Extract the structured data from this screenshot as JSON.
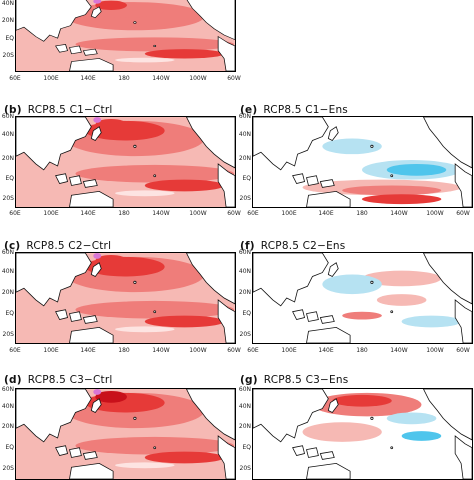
{
  "colors": {
    "warm_light": "#f6b9b4",
    "warm_mid": "#ef7d7a",
    "warm_strong": "#e63a38",
    "warm_deep": "#c8101a",
    "cool_light": "#b6e2f2",
    "cool_mid": "#4fc5ec",
    "land": "#ffffff",
    "coast": "#111111",
    "extreme": "#d977d6"
  },
  "lat_ticks": [
    "40N",
    "20N",
    "EQ",
    "20S"
  ],
  "lat_ticks_full": [
    "60N",
    "40N",
    "20N",
    "EQ",
    "20S"
  ],
  "lon_ticks": [
    "60E",
    "100E",
    "140E",
    "180",
    "140W",
    "100W",
    "60W"
  ],
  "panels": [
    {
      "id": "a",
      "label": "",
      "title": "",
      "kind": "ctrl"
    },
    {
      "id": "b",
      "label": "(b)",
      "title": "RCP8.5  C1−Ctrl",
      "kind": "ctrl"
    },
    {
      "id": "c",
      "label": "(c)",
      "title": "RCP8.5  C2−Ctrl",
      "kind": "ctrl"
    },
    {
      "id": "d",
      "label": "(d)",
      "title": "RCP8.5  C3−Ctrl",
      "kind": "ctrl"
    },
    {
      "id": "e",
      "label": "(e)",
      "title": "RCP8.5  C1−Ens",
      "kind": "ens"
    },
    {
      "id": "f",
      "label": "(f)",
      "title": "RCP8.5  C2−Ens",
      "kind": "ens"
    },
    {
      "id": "g",
      "label": "(g)",
      "title": "RCP8.5  C3−Ens",
      "kind": "ens"
    }
  ]
}
